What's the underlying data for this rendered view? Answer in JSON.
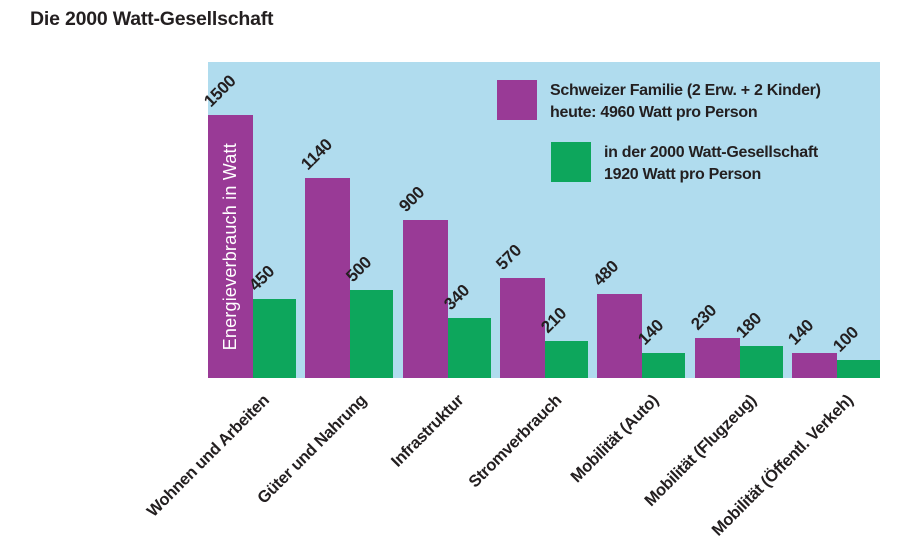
{
  "title": "Die 2000 Watt-Gesellschaft",
  "y_axis_label": "Energieverbrauch in Watt",
  "colors": {
    "today_bar": "#993a96",
    "target_bar": "#0da65c",
    "plot_background": "#b0dcee",
    "text": "#231f20",
    "y_axis_label_text": "#ffffff"
  },
  "legend": {
    "items": [
      {
        "id": "today",
        "color": "#993a96",
        "lines": [
          "Schweizer Familie (2 Erw. + 2 Kinder)",
          "heute: 4960 Watt pro Person"
        ]
      },
      {
        "id": "target",
        "color": "#0da65c",
        "lines": [
          "in der 2000 Watt-Gesellschaft",
          "1920 Watt pro Person"
        ]
      }
    ]
  },
  "chart_data": {
    "type": "bar",
    "title": "Die 2000 Watt-Gesellschaft",
    "categories": [
      "Wohnen und Arbeiten",
      "Güter und Nahrung",
      "Infrastruktur",
      "Stromverbrauch",
      "Mobilität (Auto)",
      "Mobilität (Flugzeug)",
      "Mobilität (Öffentl. Verkeh)"
    ],
    "series": [
      {
        "name": "Schweizer Familie (2 Erw. + 2 Kinder) heute: 4960 Watt pro Person",
        "color": "#993a96",
        "values": [
          1500,
          1140,
          900,
          570,
          480,
          230,
          140
        ]
      },
      {
        "name": "in der 2000 Watt-Gesellschaft 1920 Watt pro Person",
        "color": "#0da65c",
        "values": [
          450,
          500,
          340,
          210,
          140,
          180,
          100
        ]
      }
    ],
    "ylabel": "Energieverbrauch in Watt",
    "xlabel": "",
    "ylim": [
      0,
      1800
    ],
    "grid": false,
    "legend_position": "top-right",
    "value_labels_rotation_deg": 45,
    "category_labels_rotation_deg": 45
  }
}
